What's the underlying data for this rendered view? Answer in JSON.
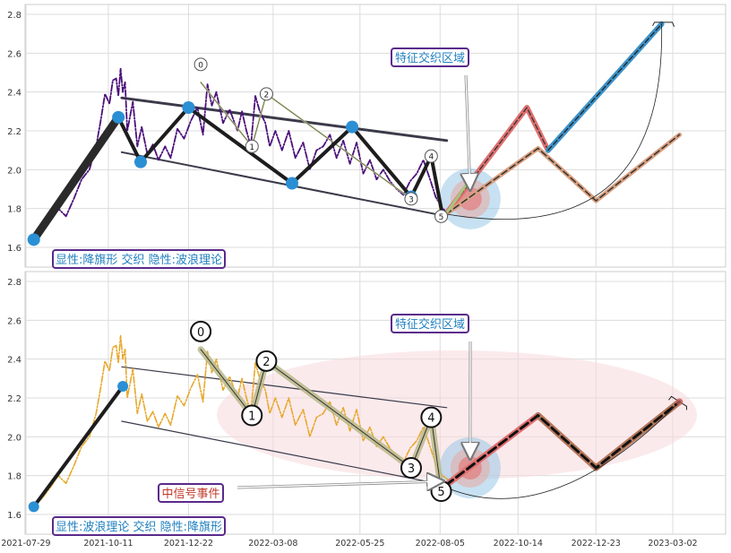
{
  "chart_data": {
    "type": "line",
    "x_ticks": [
      "2021-07-29",
      "2021-10-11",
      "2021-12-22",
      "2022-03-08",
      "2022-05-25",
      "2022-08-05",
      "2022-10-14",
      "2022-12-23",
      "2023-03-02"
    ],
    "y_ticks": [
      "1.6",
      "1.8",
      "2.0",
      "2.2",
      "2.4",
      "2.6",
      "2.8"
    ],
    "ylim": [
      1.51,
      2.84
    ],
    "grid": true,
    "top_panel": {
      "label": "显性:降旗形 交织 隐性:波浪理论",
      "annotation": "特征交织区域",
      "price": [
        [
          "2021-08-05",
          1.66
        ],
        [
          "2021-08-12",
          1.68
        ],
        [
          "2021-08-20",
          1.74
        ],
        [
          "2021-08-27",
          1.8
        ],
        [
          "2021-09-03",
          1.76
        ],
        [
          "2021-09-10",
          1.85
        ],
        [
          "2021-09-17",
          1.95
        ],
        [
          "2021-09-24",
          2.0
        ],
        [
          "2021-09-30",
          2.12
        ],
        [
          "2021-10-04",
          2.25
        ],
        [
          "2021-10-08",
          2.39
        ],
        [
          "2021-10-12",
          2.34
        ],
        [
          "2021-10-15",
          2.46
        ],
        [
          "2021-10-18",
          2.47
        ],
        [
          "2021-10-20",
          2.38
        ],
        [
          "2021-10-22",
          2.52
        ],
        [
          "2021-10-24",
          2.4
        ],
        [
          "2021-10-26",
          2.45
        ],
        [
          "2021-10-28",
          2.2
        ],
        [
          "2021-11-02",
          2.35
        ],
        [
          "2021-11-06",
          2.12
        ],
        [
          "2021-11-10",
          2.22
        ],
        [
          "2021-11-15",
          2.08
        ],
        [
          "2021-11-20",
          2.13
        ],
        [
          "2021-11-25",
          2.05
        ],
        [
          "2021-12-01",
          2.12
        ],
        [
          "2021-12-06",
          2.06
        ],
        [
          "2021-12-12",
          2.21
        ],
        [
          "2021-12-18",
          2.16
        ],
        [
          "2021-12-24",
          2.25
        ],
        [
          "2021-12-30",
          2.32
        ],
        [
          "2022-01-04",
          2.18
        ],
        [
          "2022-01-08",
          2.44
        ],
        [
          "2022-01-12",
          2.33
        ],
        [
          "2022-01-16",
          2.4
        ],
        [
          "2022-01-22",
          2.24
        ],
        [
          "2022-01-28",
          2.31
        ],
        [
          "2022-02-04",
          2.2
        ],
        [
          "2022-02-08",
          2.3
        ],
        [
          "2022-02-12",
          2.2
        ],
        [
          "2022-02-16",
          2.12
        ],
        [
          "2022-02-20",
          2.38
        ],
        [
          "2022-02-24",
          2.3
        ],
        [
          "2022-03-01",
          2.24
        ],
        [
          "2022-03-05",
          2.12
        ],
        [
          "2022-03-10",
          2.2
        ],
        [
          "2022-03-16",
          2.1
        ],
        [
          "2022-03-22",
          2.2
        ],
        [
          "2022-03-28",
          2.06
        ],
        [
          "2022-04-04",
          2.14
        ],
        [
          "2022-04-10",
          2.0
        ],
        [
          "2022-04-16",
          2.1
        ],
        [
          "2022-04-22",
          2.12
        ],
        [
          "2022-04-28",
          2.18
        ],
        [
          "2022-05-04",
          2.06
        ],
        [
          "2022-05-10",
          2.15
        ],
        [
          "2022-05-16",
          2.03
        ],
        [
          "2022-05-22",
          2.14
        ],
        [
          "2022-05-28",
          1.98
        ],
        [
          "2022-06-03",
          2.05
        ],
        [
          "2022-06-09",
          1.95
        ],
        [
          "2022-06-15",
          2.0
        ],
        [
          "2022-06-21",
          1.94
        ],
        [
          "2022-06-27",
          1.9
        ],
        [
          "2022-07-03",
          1.87
        ],
        [
          "2022-07-09",
          1.94
        ],
        [
          "2022-07-15",
          1.98
        ],
        [
          "2022-07-21",
          2.05
        ],
        [
          "2022-07-27",
          1.95
        ],
        [
          "2022-08-01",
          1.86
        ],
        [
          "2022-08-07",
          1.8
        ],
        [
          "2022-08-12",
          1.78
        ]
      ],
      "flag_channel": {
        "upper": [
          [
            "2021-10-23",
            2.37
          ],
          [
            "2022-08-11",
            2.15
          ]
        ],
        "lower": [
          [
            "2021-10-23",
            2.09
          ],
          [
            "2022-08-11",
            1.76
          ]
        ]
      },
      "flag_pivots": [
        [
          "2021-08-05",
          1.64
        ],
        [
          "2021-10-20",
          2.27
        ],
        [
          "2021-11-09",
          2.04
        ],
        [
          "2021-12-22",
          2.32
        ],
        [
          "2022-03-25",
          1.93
        ],
        [
          "2022-05-18",
          2.22
        ],
        [
          "2022-07-10",
          1.86
        ],
        [
          "2022-07-28",
          2.07
        ],
        [
          "2022-08-07",
          1.77
        ]
      ],
      "wave_labels": [
        "0",
        "1",
        "2",
        "3",
        "4",
        "5"
      ],
      "wave_points": [
        [
          "2022-01-02",
          2.45
        ],
        [
          "2022-02-17",
          2.12
        ],
        [
          "2022-03-02",
          2.39
        ],
        [
          "2022-07-10",
          1.85
        ],
        [
          "2022-07-28",
          2.07
        ],
        [
          "2022-08-06",
          1.76
        ]
      ],
      "projection_red": [
        [
          "2022-08-10",
          1.77
        ],
        [
          "2022-10-22",
          2.32
        ],
        [
          "2022-11-10",
          2.1
        ]
      ],
      "projection_blue": [
        [
          "2022-11-10",
          2.1
        ],
        [
          "2023-02-20",
          2.75
        ]
      ],
      "projection_tan": [
        [
          "2022-08-10",
          1.77
        ],
        [
          "2022-11-01",
          2.11
        ],
        [
          "2022-12-23",
          1.84
        ],
        [
          "2023-03-08",
          2.18
        ]
      ]
    },
    "bottom_panel": {
      "label": "显性:波浪理论 交织 隐性:降旗形",
      "annotation": "特征交织区域",
      "signal_label": "中信号事件",
      "price": [
        [
          "2021-08-05",
          1.66
        ],
        [
          "2021-08-12",
          1.68
        ],
        [
          "2021-08-20",
          1.74
        ],
        [
          "2021-08-27",
          1.8
        ],
        [
          "2021-09-03",
          1.76
        ],
        [
          "2021-09-10",
          1.85
        ],
        [
          "2021-09-17",
          1.95
        ],
        [
          "2021-09-24",
          2.0
        ],
        [
          "2021-09-30",
          2.12
        ],
        [
          "2021-10-04",
          2.25
        ],
        [
          "2021-10-08",
          2.39
        ],
        [
          "2021-10-12",
          2.34
        ],
        [
          "2021-10-15",
          2.46
        ],
        [
          "2021-10-18",
          2.47
        ],
        [
          "2021-10-20",
          2.38
        ],
        [
          "2021-10-22",
          2.52
        ],
        [
          "2021-10-24",
          2.4
        ],
        [
          "2021-10-26",
          2.45
        ],
        [
          "2021-10-28",
          2.2
        ],
        [
          "2021-11-02",
          2.35
        ],
        [
          "2021-11-06",
          2.12
        ],
        [
          "2021-11-10",
          2.22
        ],
        [
          "2021-11-15",
          2.08
        ],
        [
          "2021-11-20",
          2.13
        ],
        [
          "2021-11-25",
          2.05
        ],
        [
          "2021-12-01",
          2.12
        ],
        [
          "2021-12-06",
          2.06
        ],
        [
          "2021-12-12",
          2.21
        ],
        [
          "2021-12-18",
          2.16
        ],
        [
          "2021-12-24",
          2.25
        ],
        [
          "2021-12-30",
          2.32
        ],
        [
          "2022-01-04",
          2.18
        ],
        [
          "2022-01-08",
          2.44
        ],
        [
          "2022-01-12",
          2.33
        ],
        [
          "2022-01-16",
          2.4
        ],
        [
          "2022-01-22",
          2.24
        ],
        [
          "2022-01-28",
          2.31
        ],
        [
          "2022-02-04",
          2.2
        ],
        [
          "2022-02-08",
          2.3
        ],
        [
          "2022-02-12",
          2.2
        ],
        [
          "2022-02-16",
          2.12
        ],
        [
          "2022-02-20",
          2.38
        ],
        [
          "2022-02-24",
          2.3
        ],
        [
          "2022-03-01",
          2.24
        ],
        [
          "2022-03-05",
          2.12
        ],
        [
          "2022-03-10",
          2.2
        ],
        [
          "2022-03-16",
          2.1
        ],
        [
          "2022-03-22",
          2.2
        ],
        [
          "2022-03-28",
          2.06
        ],
        [
          "2022-04-04",
          2.14
        ],
        [
          "2022-04-10",
          2.0
        ],
        [
          "2022-04-16",
          2.1
        ],
        [
          "2022-04-22",
          2.12
        ],
        [
          "2022-04-28",
          2.18
        ],
        [
          "2022-05-04",
          2.06
        ],
        [
          "2022-05-10",
          2.15
        ],
        [
          "2022-05-16",
          2.03
        ],
        [
          "2022-05-22",
          2.14
        ],
        [
          "2022-05-28",
          1.98
        ],
        [
          "2022-06-03",
          2.05
        ],
        [
          "2022-06-09",
          1.95
        ],
        [
          "2022-06-15",
          2.0
        ],
        [
          "2022-06-21",
          1.94
        ],
        [
          "2022-06-27",
          1.9
        ],
        [
          "2022-07-03",
          1.87
        ],
        [
          "2022-07-09",
          1.94
        ],
        [
          "2022-07-15",
          1.98
        ],
        [
          "2022-07-21",
          2.05
        ],
        [
          "2022-07-27",
          1.95
        ],
        [
          "2022-08-01",
          1.86
        ],
        [
          "2022-08-07",
          1.8
        ],
        [
          "2022-08-12",
          1.78
        ]
      ],
      "flag_channel": {
        "upper": [
          [
            "2021-10-23",
            2.36
          ],
          [
            "2022-08-11",
            2.15
          ]
        ],
        "lower": [
          [
            "2021-10-23",
            2.08
          ],
          [
            "2022-08-11",
            1.75
          ]
        ]
      },
      "flag_pole": [
        [
          "2021-08-05",
          1.64
        ],
        [
          "2021-10-24",
          2.26
        ]
      ],
      "wave_labels": [
        "0",
        "1",
        "2",
        "3",
        "4",
        "5"
      ],
      "wave_points": [
        [
          "2022-01-02",
          2.45
        ],
        [
          "2022-02-17",
          2.11
        ],
        [
          "2022-03-02",
          2.39
        ],
        [
          "2022-07-10",
          1.84
        ],
        [
          "2022-07-28",
          2.1
        ],
        [
          "2022-08-06",
          1.72
        ]
      ],
      "projection_red": [
        [
          "2022-08-10",
          1.75
        ],
        [
          "2022-11-01",
          2.11
        ],
        [
          "2022-12-23",
          1.84
        ],
        [
          "2023-03-08",
          2.18
        ]
      ]
    }
  }
}
